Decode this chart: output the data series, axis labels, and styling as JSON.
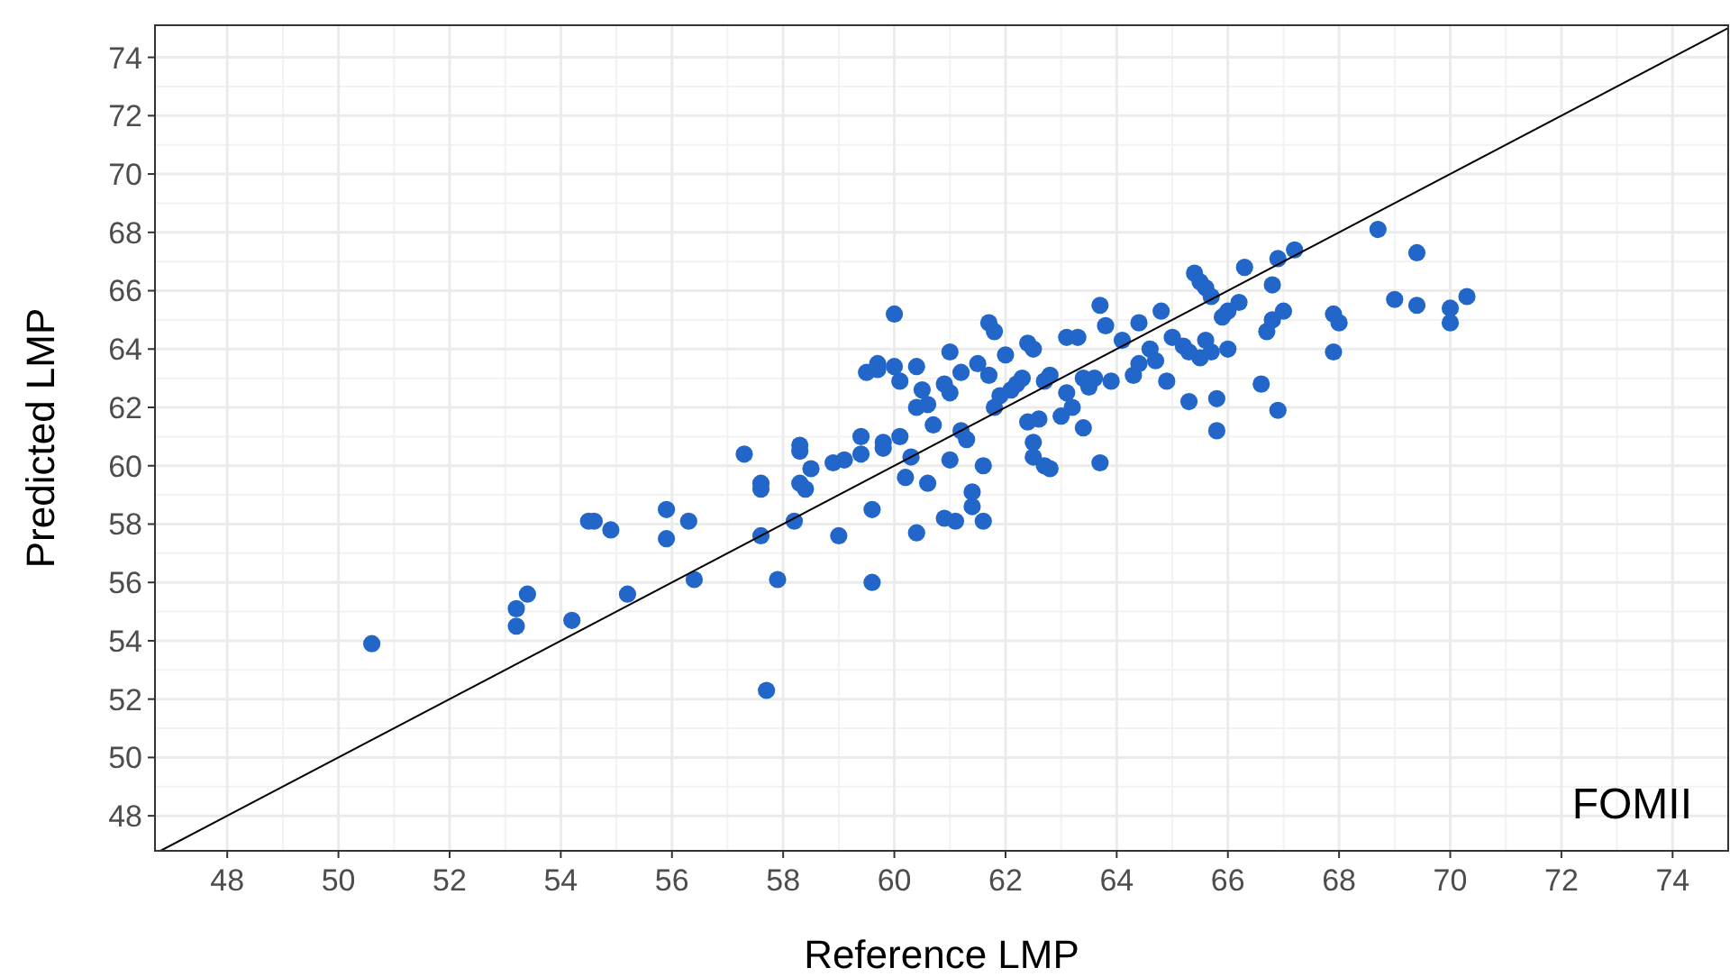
{
  "chart_data": {
    "type": "scatter",
    "xlabel": "Reference LMP",
    "ylabel": "Predicted LMP",
    "annotations": [
      "FOMII"
    ],
    "xlim": [
      46.7,
      75.0
    ],
    "ylim": [
      46.8,
      75.1
    ],
    "xticks": [
      48,
      50,
      52,
      54,
      56,
      58,
      60,
      62,
      64,
      66,
      68,
      70,
      72,
      74
    ],
    "yticks": [
      48,
      50,
      52,
      54,
      56,
      58,
      60,
      62,
      64,
      66,
      68,
      70,
      72,
      74
    ],
    "grid": true,
    "marker": "circle",
    "series": [
      {
        "color": "#2166c8",
        "x": [
          50.6,
          53.2,
          53.2,
          53.4,
          54.2,
          54.5,
          54.6,
          54.9,
          55.2,
          55.9,
          55.9,
          56.3,
          56.4,
          57.3,
          57.6,
          57.6,
          57.6,
          57.7,
          57.9,
          58.2,
          58.3,
          58.3,
          58.3,
          58.4,
          58.5,
          58.9,
          59.0,
          59.1,
          59.4,
          59.4,
          59.5,
          59.6,
          59.6,
          59.7,
          59.7,
          59.8,
          59.8,
          60.0,
          60.0,
          60.1,
          60.1,
          60.2,
          60.3,
          60.4,
          60.4,
          60.4,
          60.5,
          60.6,
          60.6,
          60.7,
          60.9,
          60.9,
          61.0,
          61.0,
          61.0,
          61.1,
          61.2,
          61.2,
          61.3,
          61.4,
          61.4,
          61.5,
          61.6,
          61.6,
          61.7,
          61.7,
          61.8,
          61.8,
          61.9,
          62.0,
          62.1,
          62.2,
          62.3,
          62.4,
          62.4,
          62.5,
          62.5,
          62.5,
          62.6,
          62.7,
          62.7,
          62.8,
          62.8,
          63.0,
          63.1,
          63.1,
          63.2,
          63.3,
          63.4,
          63.4,
          63.5,
          63.6,
          63.7,
          63.7,
          63.8,
          63.9,
          64.1,
          64.3,
          64.4,
          64.4,
          64.6,
          64.7,
          64.8,
          64.9,
          65.0,
          65.2,
          65.3,
          65.3,
          65.4,
          65.5,
          65.5,
          65.6,
          65.6,
          65.7,
          65.7,
          65.8,
          65.8,
          65.9,
          66.0,
          66.0,
          66.2,
          66.3,
          66.6,
          66.7,
          66.8,
          66.8,
          66.9,
          66.9,
          67.0,
          67.2,
          67.9,
          67.9,
          68.0,
          68.7,
          69.0,
          69.4,
          69.4,
          70.0,
          70.0,
          70.3
        ],
        "values": [
          53.9,
          55.1,
          54.5,
          55.6,
          54.7,
          58.1,
          58.1,
          57.8,
          55.6,
          58.5,
          57.5,
          58.1,
          56.1,
          60.4,
          59.4,
          59.2,
          57.6,
          52.3,
          56.1,
          58.1,
          60.5,
          60.7,
          59.4,
          59.2,
          59.9,
          60.1,
          57.6,
          60.2,
          60.4,
          61.0,
          63.2,
          56.0,
          58.5,
          63.5,
          63.3,
          60.6,
          60.8,
          65.2,
          63.4,
          61.0,
          62.9,
          59.6,
          60.3,
          63.4,
          62.0,
          57.7,
          62.6,
          59.4,
          62.1,
          61.4,
          58.2,
          62.8,
          63.9,
          60.2,
          62.5,
          58.1,
          63.2,
          61.2,
          60.9,
          59.1,
          58.6,
          63.5,
          58.1,
          60.0,
          63.1,
          64.9,
          64.6,
          62.0,
          62.4,
          63.8,
          62.6,
          62.8,
          63.0,
          61.5,
          64.2,
          60.3,
          60.8,
          64.0,
          61.6,
          60.0,
          62.9,
          59.9,
          63.1,
          61.7,
          62.5,
          64.4,
          62.0,
          64.4,
          63.0,
          61.3,
          62.7,
          63.0,
          65.5,
          60.1,
          64.8,
          62.9,
          64.3,
          63.1,
          63.5,
          64.9,
          64.0,
          63.6,
          65.3,
          62.9,
          64.4,
          64.1,
          63.9,
          62.2,
          66.6,
          66.3,
          63.7,
          64.3,
          66.1,
          65.8,
          63.9,
          61.2,
          62.3,
          65.1,
          65.3,
          64.0,
          65.6,
          66.8,
          62.8,
          64.6,
          65.0,
          66.2,
          61.9,
          67.1,
          65.3,
          67.4,
          65.2,
          63.9,
          64.9,
          68.1,
          65.7,
          67.3,
          65.5,
          65.4,
          64.9,
          65.8
        ]
      },
      {
        "type": "line",
        "color": "#000000",
        "marker": "none",
        "x": [
          46.8,
          75.0
        ],
        "values": [
          46.8,
          75.0
        ]
      }
    ]
  }
}
